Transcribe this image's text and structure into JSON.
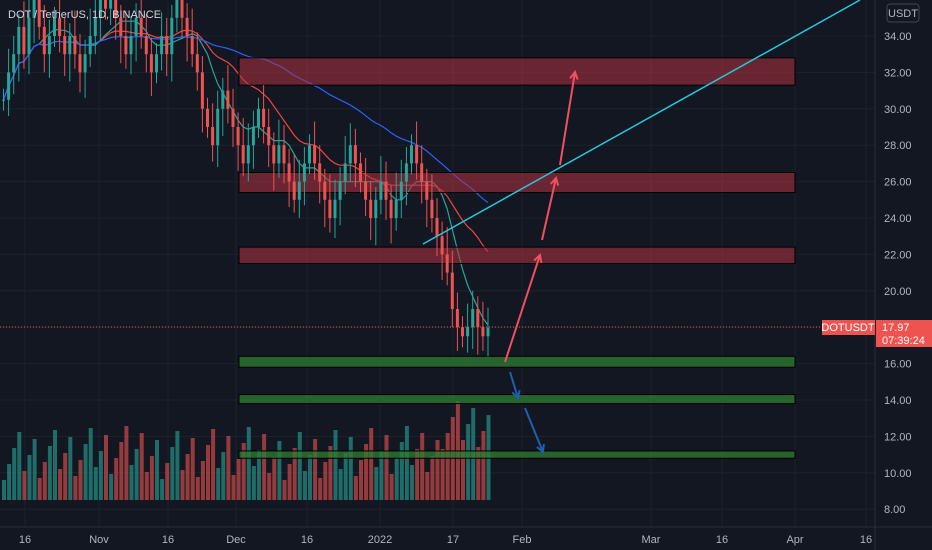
{
  "header": {
    "symbol_title": "DOT / TetherUS, 1D, BINANCE",
    "currency_button": "USDT"
  },
  "price_scale": {
    "ticks": [
      "34.00",
      "32.00",
      "30.00",
      "28.00",
      "26.00",
      "24.00",
      "22.00",
      "20.00",
      "18.00",
      "16.00",
      "14.00",
      "12.00",
      "10.00",
      "8.00"
    ]
  },
  "time_scale": {
    "ticks": [
      "16",
      "Nov",
      "16",
      "Dec",
      "16",
      "2022",
      "17",
      "Feb",
      "Mar",
      "16",
      "Apr",
      "16"
    ]
  },
  "last_price": {
    "symbol_label": "DOTUSDT",
    "price": "17.97",
    "countdown": "07:39:24"
  },
  "colors": {
    "background": "#131722",
    "grid": "#1e222d",
    "up": "#26a69a",
    "down": "#ef5350",
    "resistance_zone": "#b2323f",
    "support_zone": "#2e7d32",
    "trendline": "#26c6da",
    "bullish_arrow": "#f05060",
    "bearish_arrow": "#1e5fb4",
    "ma_fast": "#26a69a",
    "ma_slow": "#ef4444",
    "ma_long": "#2962ff"
  },
  "chart_data": {
    "type": "candlestick",
    "y_range": [
      7,
      36.6
    ],
    "resistance_zones": [
      [
        31.3,
        32.8
      ],
      [
        25.4,
        26.5
      ],
      [
        21.5,
        22.4
      ]
    ],
    "support_zones": [
      [
        15.8,
        16.4
      ],
      [
        13.8,
        14.3
      ],
      [
        10.8,
        11.2
      ]
    ],
    "closes": [
      30.5,
      32,
      33,
      34.5,
      33,
      35,
      36,
      34.5,
      33,
      34,
      35,
      34,
      33,
      34,
      33,
      32,
      33,
      34,
      35,
      36,
      35.5,
      36,
      35,
      34,
      33,
      34,
      35,
      34,
      33,
      32,
      33,
      34,
      33,
      35,
      36,
      35,
      34,
      33,
      32,
      30,
      29,
      28,
      30,
      31,
      30,
      29,
      28,
      27,
      28,
      29,
      30,
      29,
      28,
      27,
      28,
      27,
      26,
      25,
      26,
      27,
      28,
      27,
      26,
      25,
      24,
      25,
      26,
      27,
      28,
      27,
      26,
      25,
      24,
      25,
      26,
      25,
      24,
      25,
      26,
      27,
      28,
      27,
      26,
      25,
      24,
      23,
      22,
      21,
      19,
      18,
      17.5,
      18,
      19,
      18,
      17.5,
      17.97
    ]
  }
}
